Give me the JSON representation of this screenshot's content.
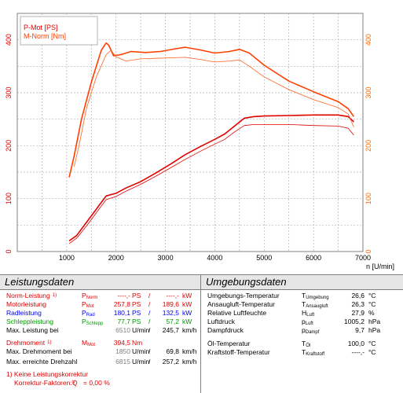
{
  "chart_data": {
    "type": "line",
    "xlabel": "n [U/min]",
    "xlim": [
      0,
      7000
    ],
    "ylim": [
      0,
      450
    ],
    "x_ticks": [
      "1000",
      "2000",
      "3000",
      "4000",
      "5000",
      "6000",
      "7000"
    ],
    "y_ticks_left": [
      "0",
      "100",
      "200",
      "300",
      "400"
    ],
    "y_ticks_right": [
      "0",
      "100",
      "200",
      "300",
      "400"
    ],
    "legend": [
      "P-Mot [PS]",
      "M-Norm [Nm]"
    ],
    "legend_position": "top-left",
    "grid": true,
    "colors": {
      "p_mot": "#e00000",
      "m_norm": "#ff4000",
      "thin_p": "#e00000",
      "thin_m": "#ff6020",
      "grid": "#b0b0b0",
      "axis_right": "#ff6a00"
    },
    "series": [
      {
        "name": "P-Mot [PS]",
        "role": "power_thick",
        "x": [
          1050,
          1200,
          1400,
          1600,
          1800,
          2000,
          2200,
          2500,
          2800,
          3100,
          3400,
          3700,
          4000,
          4200,
          4400,
          4600,
          4800,
          5000,
          5500,
          6000,
          6500,
          6700,
          6815
        ],
        "values": [
          20,
          30,
          55,
          80,
          105,
          110,
          120,
          132,
          148,
          165,
          183,
          198,
          212,
          222,
          237,
          252,
          255,
          256,
          257,
          258,
          258,
          255,
          245
        ]
      },
      {
        "name": "",
        "role": "power_thin",
        "x": [
          1050,
          1200,
          1400,
          1600,
          1800,
          2000,
          2200,
          2500,
          2800,
          3100,
          3400,
          3700,
          4000,
          4200,
          4400,
          4600,
          4800,
          5000,
          5500,
          6000,
          6500,
          6700,
          6815
        ],
        "values": [
          15,
          25,
          48,
          73,
          98,
          104,
          114,
          127,
          142,
          158,
          174,
          189,
          203,
          212,
          226,
          238,
          240,
          240,
          240,
          238,
          237,
          233,
          220
        ]
      },
      {
        "name": "M-Norm [Nm]",
        "role": "torque_thick",
        "x": [
          1050,
          1150,
          1300,
          1500,
          1700,
          1800,
          1850,
          1950,
          2100,
          2300,
          2600,
          2900,
          3200,
          3400,
          3700,
          4000,
          4300,
          4500,
          4700,
          5000,
          5500,
          6000,
          6500,
          6700,
          6815
        ],
        "values": [
          140,
          180,
          250,
          320,
          380,
          394,
          390,
          370,
          372,
          378,
          376,
          378,
          383,
          386,
          381,
          375,
          378,
          382,
          375,
          352,
          322,
          302,
          283,
          270,
          255
        ]
      },
      {
        "name": "",
        "role": "torque_thin",
        "x": [
          1150,
          1250,
          1400,
          1600,
          1800,
          1900,
          2000,
          2200,
          2500,
          2800,
          3100,
          3400,
          3700,
          4000,
          4300,
          4500,
          4700,
          5000,
          5500,
          6000,
          6500,
          6700,
          6815
        ],
        "values": [
          160,
          200,
          270,
          330,
          372,
          380,
          368,
          360,
          364,
          365,
          366,
          367,
          363,
          358,
          360,
          362,
          350,
          330,
          306,
          287,
          272,
          260,
          235
        ]
      }
    ]
  },
  "left_panel": {
    "title": "Leistungsdaten",
    "rows": [
      {
        "name": "Norm-Leistung",
        "note": "1)",
        "sym": "P",
        "sub": "Norm",
        "val": "----,-",
        "unit1": "PS",
        "val2": "----,-",
        "unit2": "kW",
        "color": "red"
      },
      {
        "name": "Motorleistung",
        "note": "",
        "sym": "P",
        "sub": "Mot",
        "val": "257,8",
        "unit1": "PS",
        "val2": "189,6",
        "unit2": "kW",
        "color": "red"
      },
      {
        "name": "Radleistung",
        "note": "",
        "sym": "P",
        "sub": "Rad",
        "val": "180,1",
        "unit1": "PS",
        "val2": "132,5",
        "unit2": "kW",
        "color": "blue"
      },
      {
        "name": "Schleppleistung",
        "note": "",
        "sym": "P",
        "sub": "Schlepp",
        "val": "77,7",
        "unit1": "PS",
        "val2": "57,2",
        "unit2": "kW",
        "color": "green"
      },
      {
        "name": "Max. Leistung bei",
        "note": "",
        "sym": "",
        "sub": "",
        "val": "6510",
        "unit1": "U/min",
        "val2": "245,7",
        "unit2": "km/h",
        "color": "black"
      }
    ],
    "torque_rows": [
      {
        "name": "Drehmoment",
        "note": "1)",
        "sym": "M",
        "sub": "Mot",
        "val": "394,5",
        "unit1": "Nm",
        "color": "red"
      },
      {
        "name": "Max. Drehmoment bei",
        "note": "",
        "sym": "",
        "sub": "",
        "val": "1850",
        "unit1": "U/min",
        "val2": "69,8",
        "unit2": "km/h",
        "color": "black"
      },
      {
        "name": "Max. erreichte Drehzahl",
        "note": "",
        "sym": "",
        "sub": "",
        "val": "6815",
        "unit1": "U/min",
        "val2": "257,2",
        "unit2": "km/h",
        "color": "black"
      }
    ],
    "footnote1": "1) Keine Leistungskorrektur",
    "footnote2_label": "Korrektur-Faktoren:",
    "footnote2_sym": "Q",
    "footnote2_sub": "V",
    "footnote2_val": "= 0,00 %"
  },
  "right_panel": {
    "title": "Umgebungsdaten",
    "rows": [
      {
        "name": "Umgebungs-Temperatur",
        "sym": "T",
        "sub": "Umgebung",
        "val": "26,6",
        "unit": "°C"
      },
      {
        "name": "Ansaugluft-Temperatur",
        "sym": "T",
        "sub": "Ansaugluft",
        "val": "26,3",
        "unit": "°C"
      },
      {
        "name": "Relative Luftfeuchte",
        "sym": "H",
        "sub": "Luft",
        "val": "27,9",
        "unit": "%"
      },
      {
        "name": "Luftdruck",
        "sym": "p",
        "sub": "Luft",
        "val": "1005,2",
        "unit": "hPa"
      },
      {
        "name": "Dampfdruck",
        "sym": "p",
        "sub": "Dampf",
        "val": "9,7",
        "unit": "hPa"
      },
      {
        "name": "Öl-Temperatur",
        "sym": "T",
        "sub": "Öl",
        "val": "100,0",
        "unit": "°C"
      },
      {
        "name": "Kraftstoff-Temperatur",
        "sym": "T",
        "sub": "Kraftstoff",
        "val": "----,-",
        "unit": "°C"
      }
    ]
  }
}
